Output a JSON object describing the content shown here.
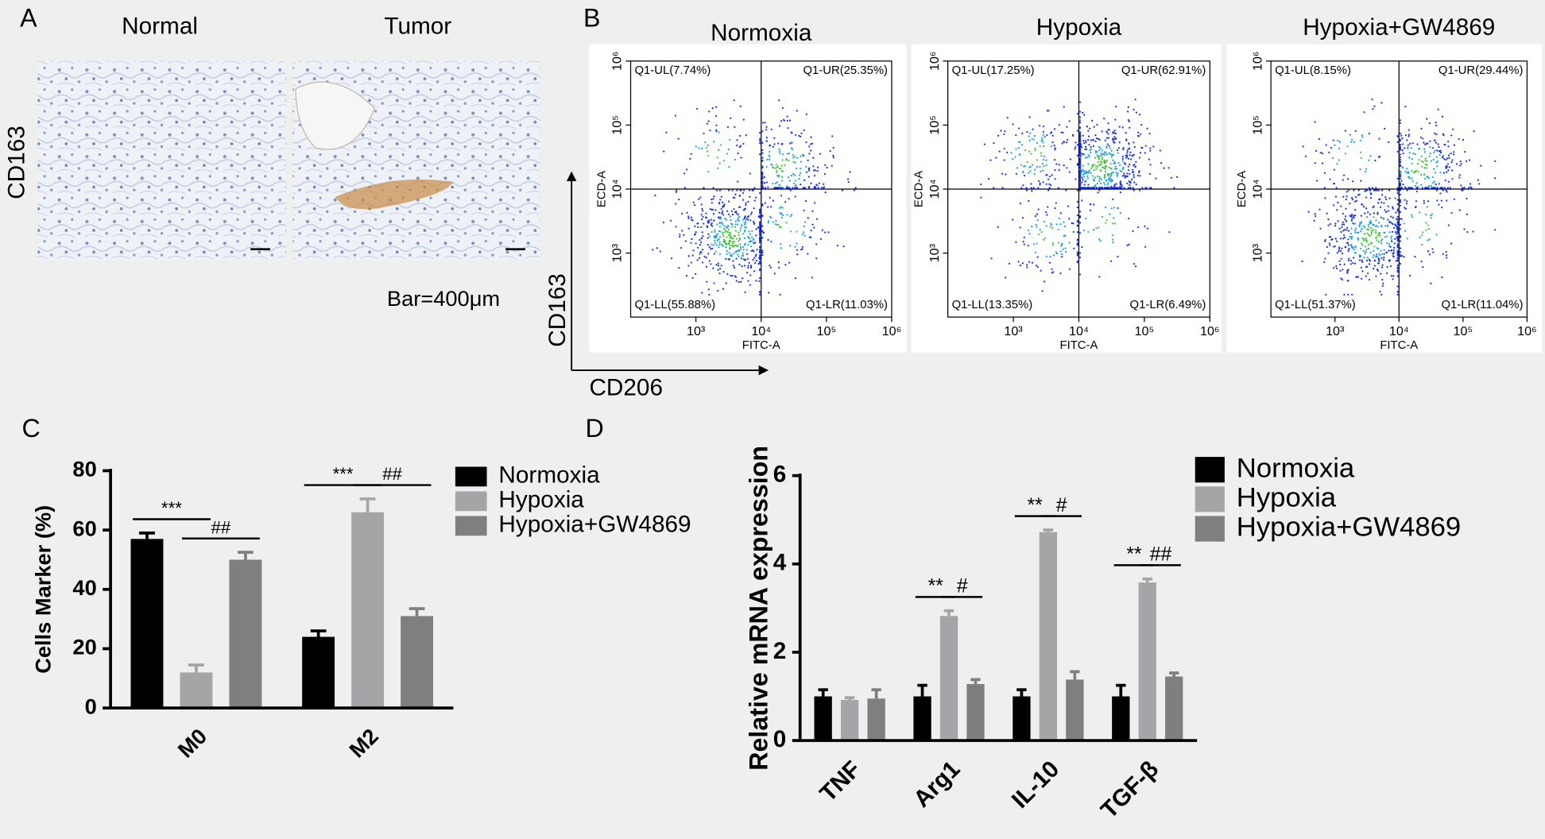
{
  "panel_a": {
    "letter": "A",
    "columns": [
      "Normal",
      "Tumor"
    ],
    "row_label": "CD163",
    "scale_note": "Bar=400μm"
  },
  "panel_b": {
    "letter": "B",
    "y_arrow_label": "CD163",
    "x_arrow_label": "CD206"
  },
  "chart_data": [
    {
      "type": "flow",
      "title": "Normoxia",
      "xlabel": "FITC-A",
      "ylabel": "ECD-A",
      "log_scale": true,
      "xlim": [
        100,
        1000000
      ],
      "ylim": [
        100,
        1000000
      ],
      "xticks": [
        {
          "value": 1000,
          "label": "10³"
        },
        {
          "value": 10000,
          "label": "10⁴"
        },
        {
          "value": 100000,
          "label": "10⁵"
        },
        {
          "value": 1000000,
          "label": "10⁶"
        }
      ],
      "yticks": [
        {
          "value": 1000,
          "label": "10³"
        },
        {
          "value": 10000,
          "label": "10⁴"
        },
        {
          "value": 100000,
          "label": "10⁵"
        },
        {
          "value": 1000000,
          "label": "10⁶"
        }
      ],
      "gate": [
        10000,
        10000
      ],
      "quadrants": [
        {
          "label": "Q1-UL(7.74%)",
          "value": 7.74
        },
        {
          "label": "Q1-UR(25.35%)",
          "value": 25.35
        },
        {
          "label": "Q1-LL(55.88%)",
          "value": 55.88
        },
        {
          "label": "Q1-LR(11.03%)",
          "value": 11.03
        }
      ]
    },
    {
      "type": "flow",
      "title": "Hypoxia",
      "xlabel": "FITC-A",
      "ylabel": "ECD-A",
      "log_scale": true,
      "xlim": [
        100,
        1000000
      ],
      "ylim": [
        100,
        1000000
      ],
      "xticks": [
        {
          "value": 1000,
          "label": "10³"
        },
        {
          "value": 10000,
          "label": "10⁴"
        },
        {
          "value": 100000,
          "label": "10⁵"
        },
        {
          "value": 1000000,
          "label": "10⁶"
        }
      ],
      "yticks": [
        {
          "value": 1000,
          "label": "10³"
        },
        {
          "value": 10000,
          "label": "10⁴"
        },
        {
          "value": 100000,
          "label": "10⁵"
        },
        {
          "value": 1000000,
          "label": "10⁶"
        }
      ],
      "gate": [
        10000,
        10000
      ],
      "quadrants": [
        {
          "label": "Q1-UL(17.25%)",
          "value": 17.25
        },
        {
          "label": "Q1-UR(62.91%)",
          "value": 62.91
        },
        {
          "label": "Q1-LL(13.35%)",
          "value": 13.35
        },
        {
          "label": "Q1-LR(6.49%)",
          "value": 6.49
        }
      ]
    },
    {
      "type": "flow",
      "title": "Hypoxia+GW4869",
      "xlabel": "FITC-A",
      "ylabel": "ECD-A",
      "log_scale": true,
      "xlim": [
        100,
        1000000
      ],
      "ylim": [
        100,
        1000000
      ],
      "xticks": [
        {
          "value": 1000,
          "label": "10³"
        },
        {
          "value": 10000,
          "label": "10⁴"
        },
        {
          "value": 100000,
          "label": "10⁵"
        },
        {
          "value": 1000000,
          "label": "10⁶"
        }
      ],
      "yticks": [
        {
          "value": 1000,
          "label": "10³"
        },
        {
          "value": 10000,
          "label": "10⁴"
        },
        {
          "value": 100000,
          "label": "10⁵"
        },
        {
          "value": 1000000,
          "label": "10⁶"
        }
      ],
      "gate": [
        10000,
        10000
      ],
      "quadrants": [
        {
          "label": "Q1-UL(8.15%)",
          "value": 8.15
        },
        {
          "label": "Q1-UR(29.44%)",
          "value": 29.44
        },
        {
          "label": "Q1-LL(51.37%)",
          "value": 51.37
        },
        {
          "label": "Q1-LR(11.04%)",
          "value": 11.04
        }
      ]
    },
    {
      "type": "bar",
      "panel": "C",
      "ylabel": "Cells Marker (%)",
      "categories": [
        "M0",
        "M2"
      ],
      "series": [
        {
          "name": "Normoxia",
          "color": "#000000",
          "values": [
            57,
            24
          ],
          "errors": [
            2,
            2
          ]
        },
        {
          "name": "Hypoxia",
          "color": "#a5a5a8",
          "values": [
            12,
            66
          ],
          "errors": [
            2.5,
            4.5
          ]
        },
        {
          "name": "Hypoxia+GW4869",
          "color": "#7f7f7f",
          "values": [
            50,
            31
          ],
          "errors": [
            2.5,
            2.5
          ]
        }
      ],
      "annotations": [
        [
          "***",
          "##"
        ],
        [
          "***",
          "##"
        ]
      ],
      "ylim": [
        0,
        80
      ],
      "yticks": [
        0,
        20,
        40,
        60,
        80
      ]
    },
    {
      "type": "bar",
      "panel": "D",
      "ylabel": "Relative mRNA expression",
      "categories": [
        "TNF",
        "Arg1",
        "IL-10",
        "TGF-β"
      ],
      "series": [
        {
          "name": "Normoxia",
          "color": "#000000",
          "values": [
            1,
            1,
            1,
            1
          ],
          "errors": [
            0.15,
            0.25,
            0.15,
            0.25
          ]
        },
        {
          "name": "Hypoxia",
          "color": "#a5a5a8",
          "values": [
            0.92,
            2.82,
            4.72,
            3.58
          ],
          "errors": [
            0.05,
            0.12,
            0.05,
            0.08
          ]
        },
        {
          "name": "Hypoxia+GW4869",
          "color": "#7f7f7f",
          "values": [
            0.95,
            1.28,
            1.38,
            1.45
          ],
          "errors": [
            0.2,
            0.1,
            0.18,
            0.08
          ]
        }
      ],
      "annotations": [
        [],
        [
          "**",
          "#"
        ],
        [
          "**",
          "#"
        ],
        [
          "**",
          "##"
        ]
      ],
      "ylim": [
        0,
        6
      ],
      "yticks": [
        0,
        2,
        4,
        6
      ]
    }
  ]
}
